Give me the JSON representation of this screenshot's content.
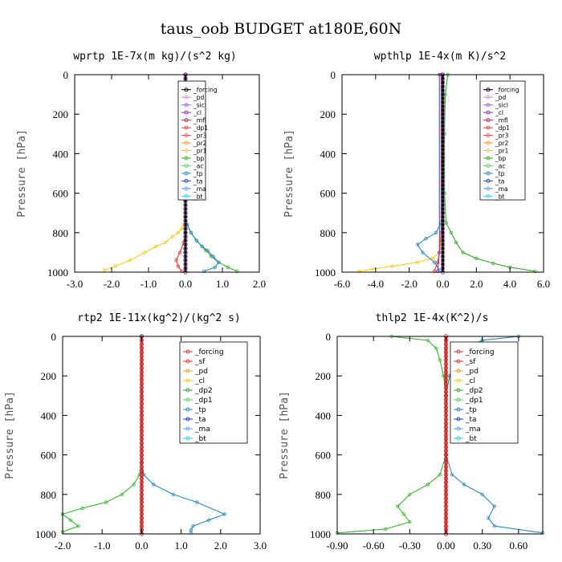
{
  "figure_title": "taus_oob  BUDGET at180E,60N",
  "chart_data": [
    {
      "type": "line",
      "title": "wprtp  1E-7x(m kg)/(s^2 kg)",
      "ylabel": "Pressure [hPa]",
      "xlim": [
        -3.0,
        2.0
      ],
      "ylim": [
        1000,
        0
      ],
      "xticks": [
        "-3.0",
        "-2.0",
        "-1.0",
        "0.0",
        "1.0",
        "2.0"
      ],
      "yticks": [
        "0",
        "200",
        "400",
        "600",
        "800",
        "1000"
      ],
      "legend": [
        "_forcing",
        "_pd",
        "_sicl",
        "_cl",
        "_mfl",
        "_dp1",
        "_pr3",
        "_pr2",
        "_pr1",
        "_bp",
        "_ac",
        "_tp",
        "_ta",
        "_ma",
        "_bt"
      ],
      "series": [
        {
          "name": "_pr1",
          "color": "#f2cc22",
          "x": [
            0,
            0,
            -0.05,
            -0.1,
            -0.2,
            -0.35,
            -0.55,
            -0.8,
            -1.1,
            -1.5,
            -1.9,
            -2.2
          ],
          "y": [
            0,
            720,
            760,
            780,
            800,
            820,
            850,
            870,
            900,
            940,
            970,
            990
          ]
        },
        {
          "name": "_ac",
          "color": "#3aa832",
          "x": [
            0,
            0,
            0.05,
            0.15,
            0.3,
            0.45,
            0.55,
            0.7,
            0.9,
            1.15,
            1.4
          ],
          "y": [
            0,
            720,
            760,
            800,
            840,
            870,
            890,
            920,
            950,
            975,
            995
          ]
        },
        {
          "name": "_tp",
          "color": "#2a8bb8",
          "x": [
            0,
            0,
            0.05,
            0.15,
            0.3,
            0.45,
            0.6,
            0.75,
            0.9,
            0.8,
            0.5
          ],
          "y": [
            0,
            720,
            760,
            800,
            840,
            870,
            890,
            920,
            950,
            975,
            995
          ]
        },
        {
          "name": "_dp1",
          "color": "#e03a3a",
          "x": [
            0,
            0,
            -0.05,
            -0.15,
            -0.25,
            -0.2,
            -0.1
          ],
          "y": [
            0,
            800,
            850,
            900,
            940,
            970,
            995
          ]
        },
        {
          "name": "_forcing",
          "color": "#000000",
          "x": [
            0,
            0
          ],
          "y": [
            0,
            1000
          ]
        }
      ]
    },
    {
      "type": "line",
      "title": "wpthlp  1E-4x(m K)/s^2",
      "ylabel": "Pressure [hPa]",
      "xlim": [
        -6.0,
        6.0
      ],
      "ylim": [
        1000,
        0
      ],
      "xticks": [
        "-6.0",
        "-4.0",
        "-2.0",
        "0.0",
        "2.0",
        "4.0",
        "6.0"
      ],
      "yticks": [
        "0",
        "200",
        "400",
        "600",
        "800",
        "1000"
      ],
      "legend": [
        "_forcing",
        "_pd",
        "_sicl",
        "_cl",
        "_mfl",
        "_dp1",
        "_pr3",
        "_pr2",
        "_pr1",
        "_bp",
        "_ac",
        "_tp",
        "_ta",
        "_ma",
        "_bt"
      ],
      "series": [
        {
          "name": "_pr1",
          "color": "#f2cc22",
          "x": [
            0,
            0,
            -0.2,
            -0.6,
            -1.5,
            -3.0,
            -4.2,
            -5.0
          ],
          "y": [
            0,
            850,
            900,
            930,
            950,
            970,
            985,
            995
          ]
        },
        {
          "name": "_ac",
          "color": "#3aa832",
          "x": [
            0.3,
            0.15,
            0.1,
            0.1,
            0.2,
            0.5,
            0.8,
            1.2,
            2.0,
            3.0,
            4.0,
            5.5
          ],
          "y": [
            0,
            100,
            300,
            600,
            750,
            800,
            850,
            900,
            930,
            955,
            975,
            995
          ]
        },
        {
          "name": "_tp",
          "color": "#2a8bb8",
          "x": [
            0,
            0,
            -0.1,
            -0.4,
            -1.0,
            -1.5,
            -1.2,
            -0.5,
            -0.2
          ],
          "y": [
            0,
            700,
            750,
            800,
            830,
            860,
            900,
            950,
            990
          ]
        },
        {
          "name": "_dp1",
          "color": "#e03a3a",
          "x": [
            -0.1,
            -0.1,
            -0.2,
            -0.3,
            -0.5
          ],
          "y": [
            0,
            800,
            900,
            950,
            995
          ]
        },
        {
          "name": "_cl",
          "color": "#8e3aa8",
          "x": [
            -0.2,
            -0.2,
            -0.3
          ],
          "y": [
            0,
            900,
            995
          ]
        },
        {
          "name": "_forcing",
          "color": "#000000",
          "x": [
            0,
            0
          ],
          "y": [
            0,
            1000
          ]
        }
      ]
    },
    {
      "type": "line",
      "title": "rtp2  1E-11x(kg^2)/(kg^2 s)",
      "ylabel": "Pressure [hPa]",
      "xlim": [
        -2.0,
        3.0
      ],
      "ylim": [
        1000,
        0
      ],
      "xticks": [
        "-2.0",
        "-1.0",
        "0.0",
        "1.0",
        "2.0",
        "3.0"
      ],
      "yticks": [
        "0",
        "200",
        "400",
        "600",
        "800",
        "1000"
      ],
      "legend": [
        "_forcing",
        "_sf",
        "_pd",
        "_cl",
        "_dp2",
        "_dp1",
        "_tp",
        "_ta",
        "_ma",
        "_bt"
      ],
      "series": [
        {
          "name": "_dp1",
          "color": "#3ab832",
          "x": [
            0,
            0,
            -0.05,
            -0.2,
            -0.5,
            -0.9,
            -1.5,
            -2.0,
            -1.8,
            -1.6,
            -2.0
          ],
          "y": [
            0,
            640,
            700,
            750,
            800,
            840,
            870,
            900,
            930,
            960,
            990
          ]
        },
        {
          "name": "_tp",
          "color": "#2a8bb8",
          "x": [
            0,
            0,
            0.05,
            0.3,
            0.8,
            1.4,
            2.1,
            1.7,
            1.3,
            1.25,
            1.25
          ],
          "y": [
            0,
            640,
            700,
            750,
            800,
            840,
            900,
            930,
            960,
            980,
            995
          ]
        },
        {
          "name": "_forcing",
          "color": "#e03a3a",
          "x": [
            0,
            0
          ],
          "y": [
            0,
            1000
          ]
        }
      ]
    },
    {
      "type": "line",
      "title": "thlp2  1E-4x(K^2)/s",
      "ylabel": "Pressure [hPa]",
      "xlim": [
        -0.9,
        0.8
      ],
      "ylim": [
        1000,
        0
      ],
      "xticks": [
        "-0.90",
        "-0.60",
        "-0.30",
        "0.00",
        "0.30",
        "0.60"
      ],
      "yticks": [
        "0",
        "200",
        "400",
        "600",
        "800",
        "1000"
      ],
      "legend": [
        "_forcing",
        "_sf",
        "_pd",
        "_cl",
        "_dp2",
        "_dp1",
        "_tp",
        "_ta",
        "_ma",
        "_bt"
      ],
      "series": [
        {
          "name": "_dp1",
          "color": "#3ab832",
          "x": [
            -0.45,
            -0.15,
            -0.08,
            -0.05,
            -0.02,
            0,
            0,
            -0.05,
            -0.15,
            -0.3,
            -0.4,
            -0.35,
            -0.3,
            -0.5,
            -0.9
          ],
          "y": [
            0,
            20,
            60,
            120,
            200,
            300,
            600,
            700,
            750,
            800,
            860,
            900,
            940,
            975,
            995
          ]
        },
        {
          "name": "_tp",
          "color": "#2a8bb8",
          "x": [
            0.6,
            0.3,
            0.15,
            0.08,
            0.03,
            0,
            0,
            0.05,
            0.15,
            0.3,
            0.4,
            0.35,
            0.4,
            0.8
          ],
          "y": [
            0,
            20,
            60,
            120,
            200,
            300,
            600,
            700,
            750,
            800,
            860,
            920,
            960,
            995
          ]
        },
        {
          "name": "_forcing",
          "color": "#e03a3a",
          "x": [
            0,
            0
          ],
          "y": [
            0,
            1000
          ]
        }
      ]
    }
  ]
}
